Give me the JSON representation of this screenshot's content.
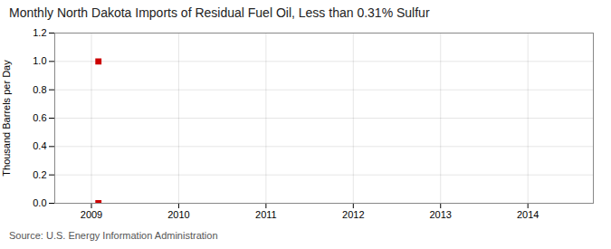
{
  "chart_data": {
    "type": "scatter",
    "title": "Monthly North Dakota Imports of Residual Fuel Oil, Less than 0.31% Sulfur",
    "ylabel": "Thousand Barrels per Day",
    "source": "Source: U.S. Energy Information Administration",
    "x": [
      2009.08,
      2009.08
    ],
    "values": [
      1.0,
      0.0
    ],
    "color": "#CC0000",
    "marker": "square",
    "xlim": [
      2008.58,
      2014.75
    ],
    "xticks": [
      2009,
      2010,
      2011,
      2012,
      2013,
      2014
    ],
    "ylim": [
      0.0,
      1.2
    ],
    "yticks": [
      {
        "value": 0.0,
        "label": "0.0"
      },
      0.2,
      0.4,
      0.6,
      0.8,
      {
        "value": 1.0,
        "label": "1.0"
      },
      1.2
    ],
    "grid": true
  }
}
